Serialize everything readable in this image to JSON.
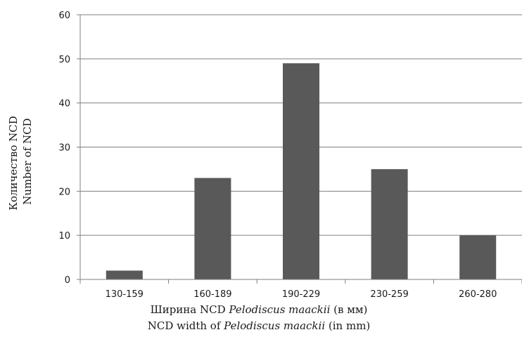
{
  "chart_data": {
    "type": "bar",
    "categories": [
      "130-159",
      "160-189",
      "190-229",
      "230-259",
      "260-280"
    ],
    "values": [
      2,
      23,
      49,
      25,
      10
    ],
    "ylim": [
      0,
      60
    ],
    "yticks": [
      0,
      10,
      20,
      30,
      40,
      50,
      60
    ],
    "grid": true,
    "legend": "none",
    "bar_color": "#595959",
    "ylabel": {
      "line1": "Количество NCD",
      "line2": "Number of NCD"
    },
    "xlabel": {
      "line1": {
        "prefix": "Ширина NCD ",
        "italic": "Pelodiscus maackii",
        "suffix": " (в мм)"
      },
      "line2": {
        "prefix": "NCD width of ",
        "italic": "Pelodiscus maackii",
        "suffix": " (in mm)"
      }
    }
  }
}
